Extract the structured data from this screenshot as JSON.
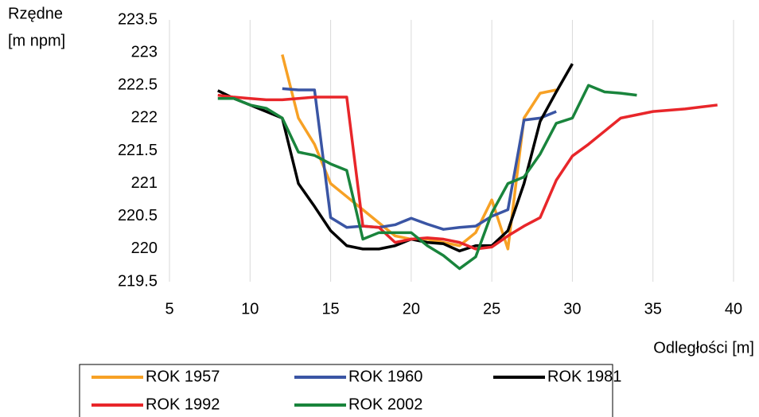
{
  "chart_data": {
    "type": "line",
    "y_label": [
      "Rzędne",
      "[m npm]"
    ],
    "x_label": "Odległości [m]",
    "xlim": [
      5,
      40
    ],
    "xticks": [
      5,
      10,
      15,
      20,
      25,
      30,
      35,
      40
    ],
    "ylim": [
      219.5,
      223.5
    ],
    "yticks": [
      219.5,
      220,
      220.5,
      221,
      221.5,
      222,
      222.5,
      223,
      223.5
    ],
    "grid": "x",
    "series": [
      {
        "name": "ROK 1957",
        "color": "#f7a125",
        "x": [
          12,
          13,
          14,
          15,
          16,
          17,
          18,
          19,
          20,
          21,
          22,
          23,
          24,
          25,
          26,
          27,
          28,
          29
        ],
        "values": [
          222.97,
          222.0,
          221.6,
          221.0,
          220.8,
          220.6,
          220.4,
          220.2,
          220.15,
          220.15,
          220.1,
          220.05,
          220.25,
          220.75,
          220.0,
          222.0,
          222.38,
          222.43
        ]
      },
      {
        "name": "ROK 1960",
        "color": "#3a55a4",
        "x": [
          12,
          13,
          14,
          15,
          16,
          17,
          18,
          19,
          20,
          21,
          22,
          23,
          24,
          25,
          26,
          27,
          28,
          29
        ],
        "values": [
          222.45,
          222.43,
          222.43,
          220.48,
          220.33,
          220.35,
          220.33,
          220.37,
          220.47,
          220.38,
          220.3,
          220.33,
          220.35,
          220.5,
          220.6,
          221.97,
          222.0,
          222.1
        ]
      },
      {
        "name": "ROK 1981",
        "color": "#000000",
        "x": [
          8,
          9,
          10,
          11,
          12,
          13,
          14,
          15,
          16,
          17,
          18,
          19,
          20,
          21,
          22,
          23,
          24,
          25,
          26,
          27,
          28,
          29,
          30
        ],
        "values": [
          222.42,
          222.3,
          222.2,
          222.1,
          222.0,
          221.0,
          220.65,
          220.28,
          220.05,
          220.0,
          220.0,
          220.05,
          220.15,
          220.1,
          220.08,
          219.97,
          220.05,
          220.05,
          220.28,
          221.0,
          221.95,
          222.4,
          222.83
        ]
      },
      {
        "name": "ROK 1992",
        "color": "#e8262a",
        "x": [
          8,
          9,
          10,
          11,
          12,
          13,
          14,
          15,
          16,
          17,
          18,
          19,
          20,
          21,
          22,
          23,
          24,
          25,
          26,
          27,
          28,
          29,
          30,
          31,
          32,
          33,
          34,
          35,
          36,
          37,
          38,
          39
        ],
        "values": [
          222.35,
          222.32,
          222.3,
          222.28,
          222.28,
          222.3,
          222.32,
          222.32,
          222.32,
          220.35,
          220.33,
          220.1,
          220.15,
          220.17,
          220.15,
          220.1,
          220.0,
          220.03,
          220.2,
          220.35,
          220.48,
          221.05,
          221.42,
          221.6,
          221.8,
          222.0,
          222.05,
          222.1,
          222.12,
          222.14,
          222.17,
          222.2
        ]
      },
      {
        "name": "ROK 2002",
        "color": "#19843c",
        "x": [
          8,
          9,
          10,
          11,
          12,
          13,
          14,
          15,
          16,
          17,
          18,
          19,
          20,
          21,
          22,
          23,
          24,
          25,
          26,
          27,
          28,
          29,
          30,
          31,
          32,
          33,
          34
        ],
        "values": [
          222.3,
          222.3,
          222.2,
          222.15,
          222.0,
          221.48,
          221.43,
          221.3,
          221.2,
          220.15,
          220.25,
          220.25,
          220.25,
          220.05,
          219.9,
          219.7,
          219.88,
          220.55,
          221.0,
          221.1,
          221.45,
          221.92,
          222.0,
          222.5,
          222.4,
          222.38,
          222.35
        ]
      }
    ]
  }
}
